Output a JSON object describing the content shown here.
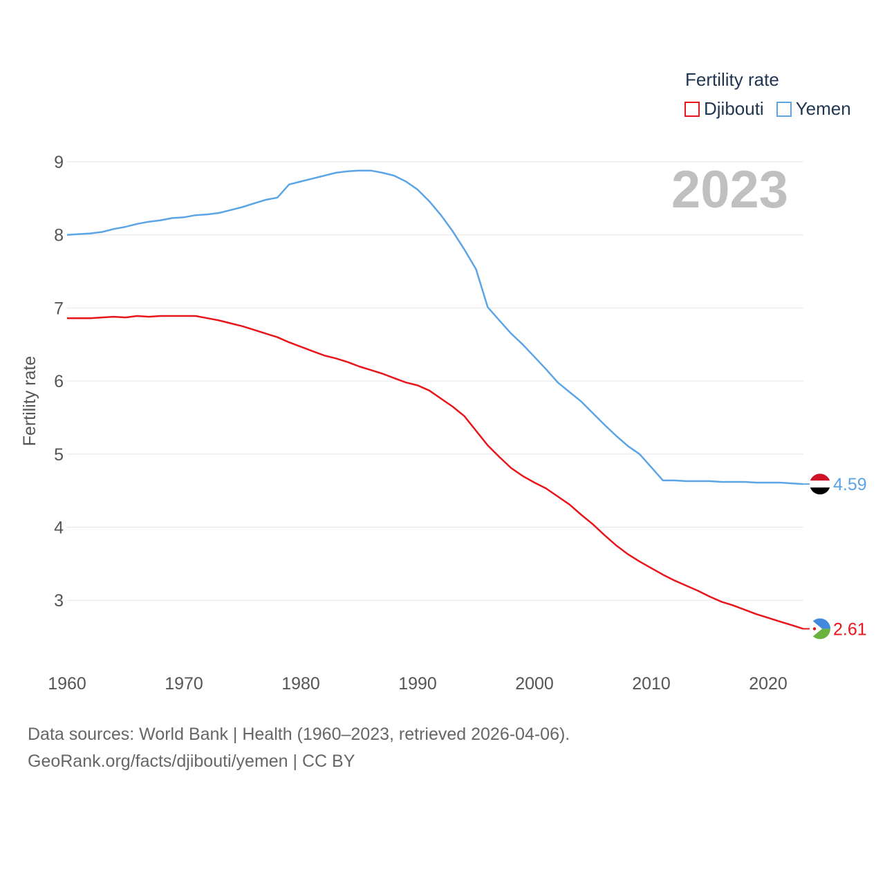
{
  "colors": {
    "djibouti": "#e8151b",
    "yemen": "#5ba4e6",
    "grid": "#e6e6e6",
    "axisText": "#555555",
    "yearText": "#c0c0c0"
  },
  "legend": {
    "title": "Fertility rate",
    "items": [
      {
        "label": "Djibouti",
        "color": "#e8151b"
      },
      {
        "label": "Yemen",
        "color": "#5ba4e6"
      }
    ]
  },
  "year_label": "2023",
  "footer": {
    "line1": "Data sources: World Bank | Health (1960–2023, retrieved 2026-04-06).",
    "line2": "GeoRank.org/facts/djibouti/yemen | CC BY"
  },
  "chart_data": {
    "type": "line",
    "title": "Fertility rate",
    "xlabel": "",
    "ylabel": "Fertility rate",
    "xlim": [
      1960,
      2023
    ],
    "ylim": [
      2.1,
      9.3
    ],
    "x_ticks": [
      1960,
      1970,
      1980,
      1990,
      2000,
      2010,
      2020
    ],
    "y_ticks": [
      3,
      4,
      5,
      6,
      7,
      8,
      9
    ],
    "grid": true,
    "legend_position": "top-right",
    "x": [
      1960,
      1961,
      1962,
      1963,
      1964,
      1965,
      1966,
      1967,
      1968,
      1969,
      1970,
      1971,
      1972,
      1973,
      1974,
      1975,
      1976,
      1977,
      1978,
      1979,
      1980,
      1981,
      1982,
      1983,
      1984,
      1985,
      1986,
      1987,
      1988,
      1989,
      1990,
      1991,
      1992,
      1993,
      1994,
      1995,
      1996,
      1997,
      1998,
      1999,
      2000,
      2001,
      2002,
      2003,
      2004,
      2005,
      2006,
      2007,
      2008,
      2009,
      2010,
      2011,
      2012,
      2013,
      2014,
      2015,
      2016,
      2017,
      2018,
      2019,
      2020,
      2021,
      2022,
      2023
    ],
    "series": [
      {
        "name": "Djibouti",
        "color": "#e8151b",
        "end_label": "2.61",
        "values": [
          6.86,
          6.86,
          6.86,
          6.87,
          6.88,
          6.87,
          6.89,
          6.88,
          6.89,
          6.89,
          6.89,
          6.89,
          6.86,
          6.83,
          6.79,
          6.75,
          6.7,
          6.65,
          6.6,
          6.53,
          6.47,
          6.41,
          6.35,
          6.31,
          6.26,
          6.2,
          6.15,
          6.1,
          6.04,
          5.98,
          5.94,
          5.87,
          5.76,
          5.65,
          5.52,
          5.32,
          5.12,
          4.96,
          4.81,
          4.7,
          4.61,
          4.53,
          4.42,
          4.31,
          4.17,
          4.04,
          3.89,
          3.75,
          3.63,
          3.53,
          3.44,
          3.35,
          3.27,
          3.2,
          3.13,
          3.05,
          2.98,
          2.93,
          2.87,
          2.81,
          2.76,
          2.71,
          2.66,
          2.61
        ]
      },
      {
        "name": "Yemen",
        "color": "#5ba4e6",
        "end_label": "4.59",
        "values": [
          8.0,
          8.01,
          8.02,
          8.04,
          8.08,
          8.11,
          8.15,
          8.18,
          8.2,
          8.23,
          8.24,
          8.27,
          8.28,
          8.3,
          8.34,
          8.38,
          8.43,
          8.48,
          8.51,
          8.69,
          8.73,
          8.77,
          8.81,
          8.85,
          8.87,
          8.88,
          8.88,
          8.85,
          8.81,
          8.73,
          8.62,
          8.46,
          8.27,
          8.05,
          7.8,
          7.53,
          7.01,
          6.83,
          6.65,
          6.5,
          6.33,
          6.16,
          5.98,
          5.85,
          5.72,
          5.56,
          5.4,
          5.25,
          5.11,
          5.0,
          4.82,
          4.64,
          4.64,
          4.63,
          4.63,
          4.63,
          4.62,
          4.62,
          4.62,
          4.61,
          4.61,
          4.61,
          4.6,
          4.59
        ]
      }
    ]
  }
}
